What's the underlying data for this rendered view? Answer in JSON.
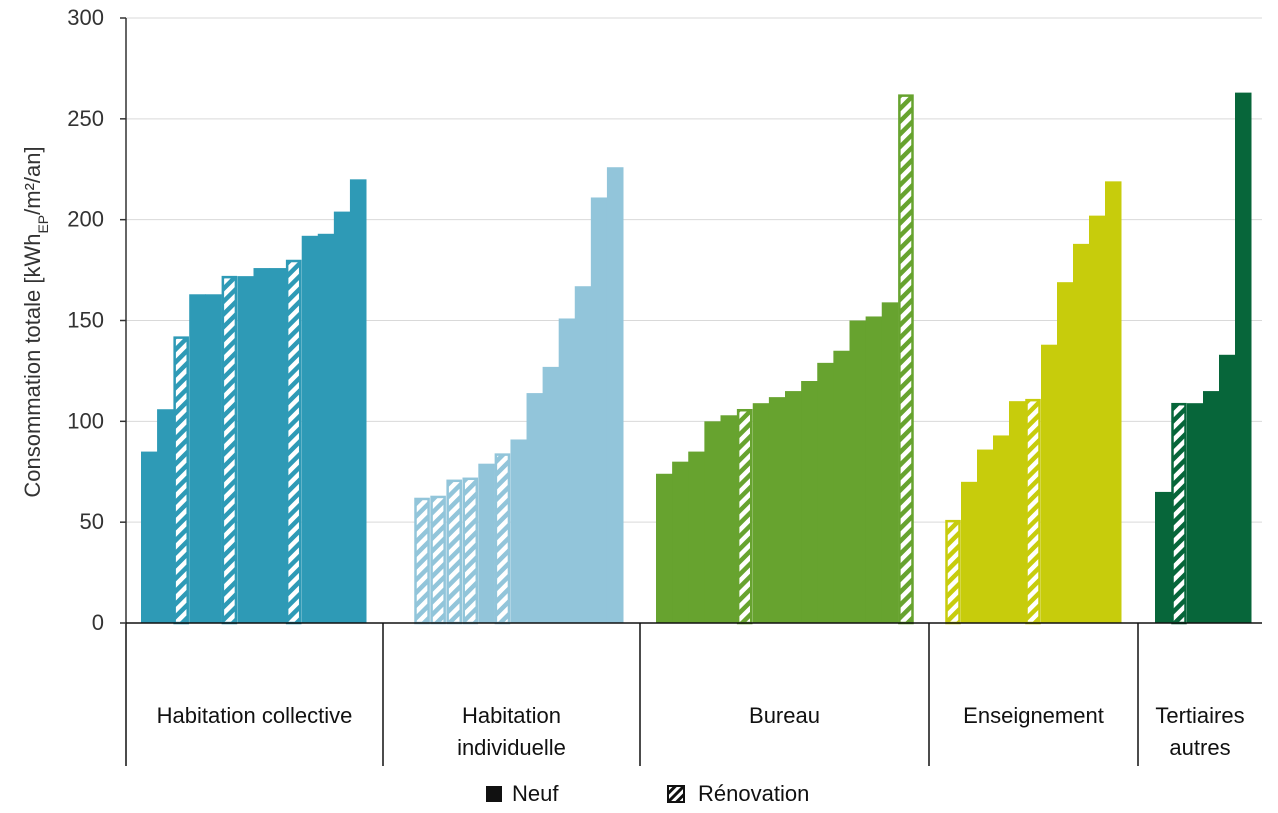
{
  "chart_data": {
    "type": "bar",
    "ylabel_main": "Consommation totale [kWh",
    "ylabel_sub": "EP",
    "ylabel_tail": "/m²/an]",
    "ylim": [
      0,
      300
    ],
    "yticks": [
      0,
      50,
      100,
      150,
      200,
      250,
      300
    ],
    "grid": true,
    "legend_position": "bottom",
    "legend": [
      {
        "label": "Neuf",
        "type": "solid"
      },
      {
        "label": "Rénovation",
        "type": "hatched"
      }
    ],
    "groups": [
      {
        "label": [
          "Habitation collective"
        ],
        "color": "#2e9ab6",
        "bars": [
          {
            "value": 85,
            "type": "solid"
          },
          {
            "value": 106,
            "type": "solid"
          },
          {
            "value": 142,
            "type": "hatched"
          },
          {
            "value": 163,
            "type": "solid"
          },
          {
            "value": 163,
            "type": "solid"
          },
          {
            "value": 172,
            "type": "hatched"
          },
          {
            "value": 172,
            "type": "solid"
          },
          {
            "value": 176,
            "type": "solid"
          },
          {
            "value": 176,
            "type": "solid"
          },
          {
            "value": 180,
            "type": "hatched"
          },
          {
            "value": 192,
            "type": "solid"
          },
          {
            "value": 193,
            "type": "solid"
          },
          {
            "value": 204,
            "type": "solid"
          },
          {
            "value": 220,
            "type": "solid"
          }
        ]
      },
      {
        "label": [
          "Habitation",
          "individuelle"
        ],
        "color": "#92c5da",
        "bars": [
          {
            "value": 62,
            "type": "hatched"
          },
          {
            "value": 63,
            "type": "hatched"
          },
          {
            "value": 71,
            "type": "hatched"
          },
          {
            "value": 72,
            "type": "hatched"
          },
          {
            "value": 79,
            "type": "solid"
          },
          {
            "value": 84,
            "type": "hatched"
          },
          {
            "value": 91,
            "type": "solid"
          },
          {
            "value": 114,
            "type": "solid"
          },
          {
            "value": 127,
            "type": "solid"
          },
          {
            "value": 151,
            "type": "solid"
          },
          {
            "value": 167,
            "type": "solid"
          },
          {
            "value": 211,
            "type": "solid"
          },
          {
            "value": 226,
            "type": "solid"
          }
        ]
      },
      {
        "label": [
          "Bureau"
        ],
        "color": "#67a32f",
        "bars": [
          {
            "value": 74,
            "type": "solid"
          },
          {
            "value": 80,
            "type": "solid"
          },
          {
            "value": 85,
            "type": "solid"
          },
          {
            "value": 100,
            "type": "solid"
          },
          {
            "value": 103,
            "type": "solid"
          },
          {
            "value": 106,
            "type": "hatched"
          },
          {
            "value": 109,
            "type": "solid"
          },
          {
            "value": 112,
            "type": "solid"
          },
          {
            "value": 115,
            "type": "solid"
          },
          {
            "value": 120,
            "type": "solid"
          },
          {
            "value": 129,
            "type": "solid"
          },
          {
            "value": 135,
            "type": "solid"
          },
          {
            "value": 150,
            "type": "solid"
          },
          {
            "value": 152,
            "type": "solid"
          },
          {
            "value": 159,
            "type": "solid"
          },
          {
            "value": 262,
            "type": "hatched"
          }
        ]
      },
      {
        "label": [
          "Enseignement"
        ],
        "color": "#c7cc0c",
        "bars": [
          {
            "value": 51,
            "type": "hatched"
          },
          {
            "value": 70,
            "type": "solid"
          },
          {
            "value": 86,
            "type": "solid"
          },
          {
            "value": 93,
            "type": "solid"
          },
          {
            "value": 110,
            "type": "solid"
          },
          {
            "value": 111,
            "type": "hatched"
          },
          {
            "value": 138,
            "type": "solid"
          },
          {
            "value": 169,
            "type": "solid"
          },
          {
            "value": 188,
            "type": "solid"
          },
          {
            "value": 202,
            "type": "solid"
          },
          {
            "value": 219,
            "type": "solid"
          }
        ]
      },
      {
        "label": [
          "Tertiaires",
          "autres"
        ],
        "color": "#07663a",
        "bars": [
          {
            "value": 65,
            "type": "solid"
          },
          {
            "value": 109,
            "type": "hatched"
          },
          {
            "value": 109,
            "type": "solid"
          },
          {
            "value": 115,
            "type": "solid"
          },
          {
            "value": 133,
            "type": "solid"
          },
          {
            "value": 263,
            "type": "solid"
          }
        ]
      }
    ]
  }
}
